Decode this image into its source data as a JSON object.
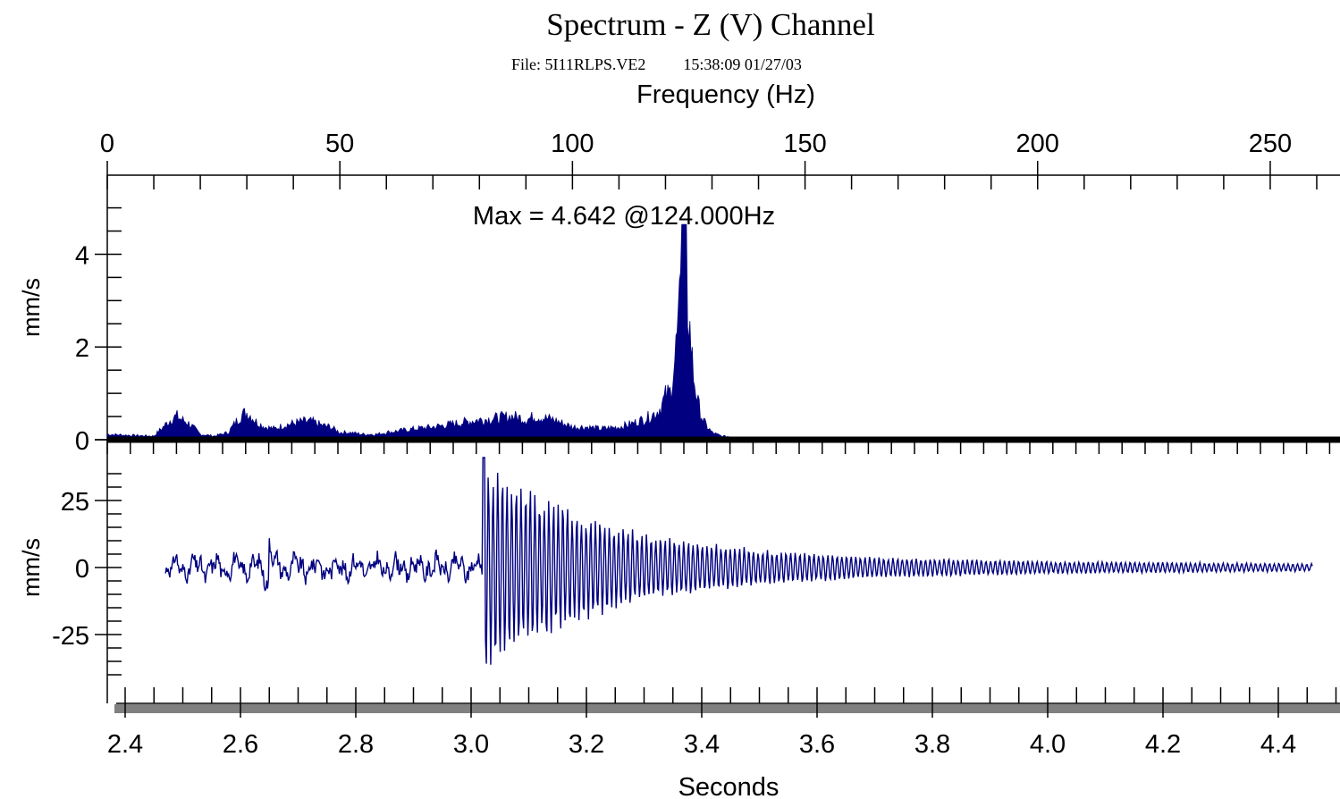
{
  "title": "Spectrum - Z (V) Channel",
  "file_label": "File: 5I11RLPS.VE2",
  "timestamp": "15:38:09 01/27/03",
  "colors": {
    "data": "#000080",
    "axis": "#000000",
    "shadow": "#808080"
  },
  "chart_data": [
    {
      "type": "area",
      "title": "Spectrum - Z (V) Channel",
      "xlabel": "Frequency (Hz)",
      "ylabel": "mm/s",
      "xlim": [
        0,
        265
      ],
      "ylim": [
        0,
        5.3
      ],
      "x_ticks": [
        0,
        50,
        100,
        150,
        200,
        250
      ],
      "y_ticks": [
        0,
        2,
        4
      ],
      "annotation": "Max = 4.642 @124.000Hz",
      "peak": {
        "x": 124.0,
        "y": 4.642
      },
      "x": [
        0,
        5,
        10,
        12,
        14,
        15,
        16,
        17,
        18,
        20,
        23,
        26,
        28,
        29,
        30,
        31,
        32,
        34,
        36,
        38,
        40,
        42,
        44,
        46,
        48,
        50,
        52,
        55,
        58,
        60,
        63,
        66,
        70,
        75,
        80,
        84,
        87,
        89,
        90,
        92,
        94,
        96,
        98,
        100,
        103,
        106,
        110,
        113,
        116,
        118,
        119,
        120,
        121,
        122,
        123,
        124,
        125,
        126,
        127,
        128,
        129,
        130,
        132,
        134,
        137,
        140,
        150,
        180,
        220,
        265
      ],
      "y": [
        0.15,
        0.12,
        0.1,
        0.35,
        0.6,
        0.65,
        0.55,
        0.5,
        0.4,
        0.15,
        0.1,
        0.2,
        0.55,
        0.7,
        0.75,
        0.65,
        0.5,
        0.35,
        0.3,
        0.4,
        0.45,
        0.5,
        0.5,
        0.4,
        0.35,
        0.2,
        0.2,
        0.15,
        0.15,
        0.2,
        0.25,
        0.3,
        0.35,
        0.45,
        0.55,
        0.6,
        0.65,
        0.6,
        0.55,
        0.65,
        0.6,
        0.55,
        0.45,
        0.35,
        0.35,
        0.3,
        0.35,
        0.45,
        0.6,
        0.75,
        0.9,
        1.2,
        1.3,
        2.2,
        3.5,
        4.642,
        3.4,
        1.8,
        1.0,
        0.55,
        0.35,
        0.2,
        0.1,
        0.08,
        0.06,
        0.05,
        0.05,
        0.05,
        0.05,
        0.05
      ]
    },
    {
      "type": "line",
      "xlabel": "Seconds",
      "ylabel": "mm/s",
      "xlim": [
        2.385,
        4.53
      ],
      "ylim": [
        -43,
        41
      ],
      "x_ticks": [
        "2.4",
        "2.6",
        "2.8",
        "3.0",
        "3.2",
        "3.4",
        "3.6",
        "3.8",
        "4.0",
        "4.2",
        "4.4"
      ],
      "y_ticks": [
        -25,
        0,
        25
      ],
      "t_start": 2.47,
      "t_end": 4.46,
      "impulse_time": 3.02,
      "pre_impulse_amplitude": 4,
      "peak_positive": 41,
      "peak_negative": -43,
      "decay_envelope": {
        "t": [
          3.02,
          3.1,
          3.2,
          3.3,
          3.5,
          3.7,
          4.0,
          4.46
        ],
        "a": [
          41,
          30,
          20,
          13,
          7,
          4,
          2.5,
          1.5
        ]
      }
    }
  ]
}
